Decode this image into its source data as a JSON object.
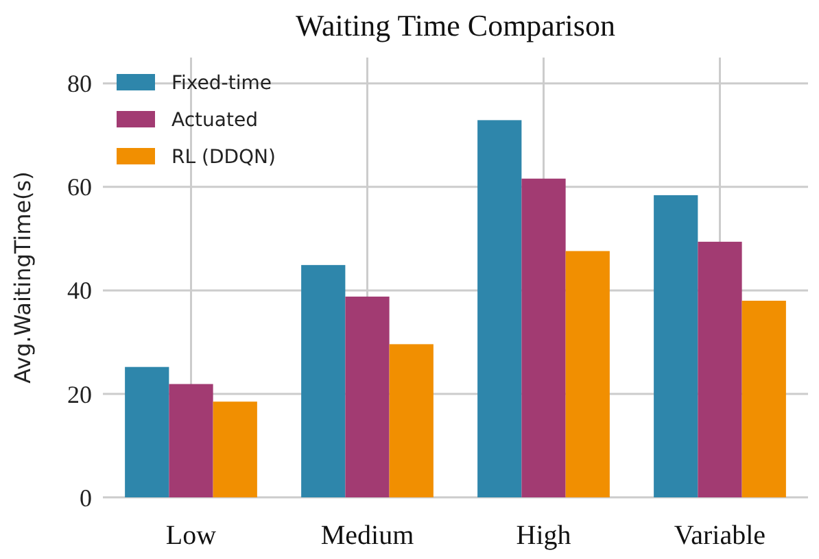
{
  "chart_data": {
    "type": "bar",
    "title": "Waiting Time Comparison",
    "ylabel": "Avg.WaitingTime(s)",
    "categories": [
      "Low",
      "Medium",
      "High",
      "Variable"
    ],
    "series": [
      {
        "name": "Fixed-time",
        "color": "#2e86ab",
        "values": [
          25.2,
          44.9,
          72.9,
          58.4
        ]
      },
      {
        "name": "Actuated",
        "color": "#a23b72",
        "values": [
          21.9,
          38.8,
          61.6,
          49.4
        ]
      },
      {
        "name": "RL (DDQN)",
        "color": "#f18f01",
        "values": [
          18.5,
          29.6,
          47.6,
          38
        ]
      }
    ],
    "ylim": [
      0,
      85
    ],
    "yticks": [
      0,
      20,
      40,
      60,
      80
    ],
    "grid": true,
    "legend": "top left"
  }
}
